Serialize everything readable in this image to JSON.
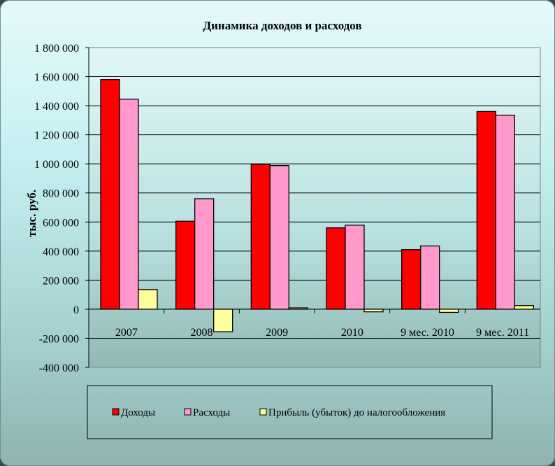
{
  "chart_data": {
    "type": "bar",
    "title": "Динамика доходов и расходов",
    "ylabel": "тыс. руб.",
    "xlabel": "",
    "categories": [
      "2007",
      "2008",
      "2009",
      "2010",
      "9 мес. 2010",
      "9 мес. 2011"
    ],
    "series": [
      {
        "name": "Доходы",
        "color": "#ff0000",
        "values": [
          1580000,
          605000,
          997000,
          560000,
          410000,
          1360000
        ]
      },
      {
        "name": "Расходы",
        "color": "#ff99cc",
        "values": [
          1445000,
          760000,
          988000,
          578000,
          435000,
          1335000
        ]
      },
      {
        "name": "Прибыль (убыток) до налогообложения",
        "color": "#ffff99",
        "values": [
          135000,
          -155000,
          9000,
          -18000,
          -22000,
          25000
        ]
      }
    ],
    "ylim": [
      -400000,
      1800000
    ],
    "yticks": [
      1800000,
      1600000,
      1400000,
      1200000,
      1000000,
      800000,
      600000,
      400000,
      200000,
      0,
      -200000,
      -400000
    ],
    "ytick_labels": [
      "1 800 000",
      "1 600 000",
      "1 400 000",
      "1 200 000",
      "1 000 000",
      "800 000",
      "600 000",
      "400 000",
      "200 000",
      "0",
      "-200 000",
      "-400 000"
    ],
    "grid": true,
    "legend_position": "bottom"
  }
}
